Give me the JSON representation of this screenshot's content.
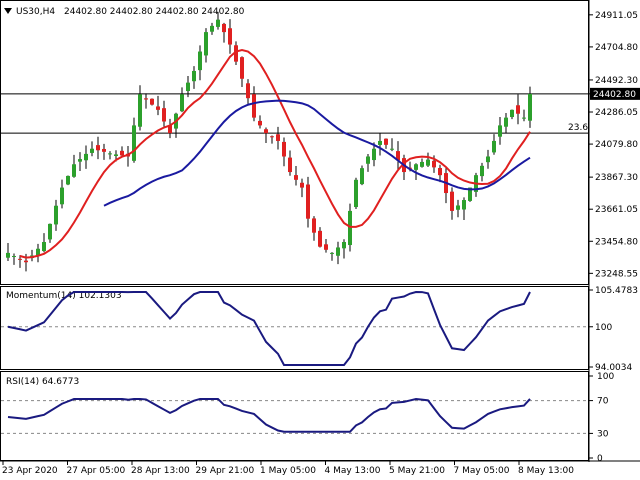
{
  "header": {
    "symbol_timeframe": "US30,H4",
    "ohlc": "24402.80 24402.80 24402.80 24402.80",
    "dropdown_icon": "triangle-down-icon"
  },
  "colors": {
    "bull": "#2ca02c",
    "bear": "#e02020",
    "ma_fast": "#e02020",
    "ma_slow": "#1a1aa0",
    "indicator": "#1a1a80",
    "grid": "#000000",
    "background": "#ffffff"
  },
  "current_price": "24402.80",
  "level_label": "23.6",
  "chart_data": [
    {
      "type": "candlestick",
      "title": "US30,H4",
      "ylim": [
        23180,
        25000
      ],
      "price_ticks": [
        "24911.05",
        "24704.80",
        "24492.30",
        "24402.80",
        "24286.05",
        "24079.80",
        "23867.30",
        "23661.05",
        "23454.80",
        "23248.55"
      ],
      "horizontal_levels": [
        24402.8,
        24150
      ],
      "series": [
        {
          "name": "",
          "kind": "candles"
        },
        {
          "name": "",
          "kind": "moving-average-fast"
        },
        {
          "name": "",
          "kind": "moving-average-slow"
        }
      ]
    },
    {
      "type": "line",
      "title": "Momentum(14) 102.1303",
      "ylim": [
        94.0034,
        105.4783
      ],
      "y_ticks": [
        "105.4783",
        "100",
        "94.0034"
      ],
      "reference_lines": [
        100
      ]
    },
    {
      "type": "line",
      "title": "RSI(14) 64.6773",
      "ylim": [
        0,
        100
      ],
      "y_ticks": [
        "100",
        "70",
        "30",
        "0"
      ],
      "reference_lines": [
        70,
        30
      ]
    }
  ],
  "x_axis": {
    "labels": [
      "23 Apr 2020",
      "27 Apr 05:00",
      "28 Apr 13:00",
      "29 Apr 21:00",
      "1 May 05:00",
      "4 May 13:00",
      "5 May 21:00",
      "7 May 05:00",
      "8 May 13:00"
    ]
  }
}
